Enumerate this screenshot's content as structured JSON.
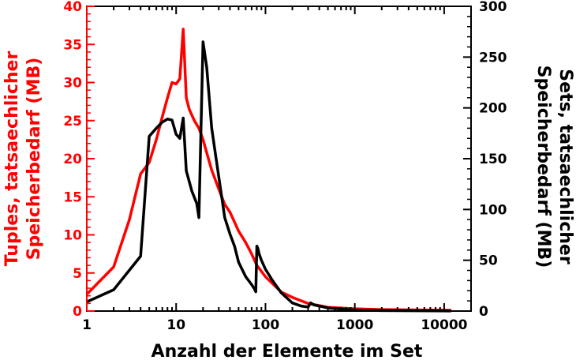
{
  "chart_data": {
    "type": "line",
    "title": "",
    "xlabel": "Anzahl der Elemente im Set",
    "x_scale": "log",
    "xlim": [
      1,
      20000
    ],
    "x_ticks": [
      {
        "value": 1,
        "label": "1"
      },
      {
        "value": 10,
        "label": "10"
      },
      {
        "value": 100,
        "label": "100"
      },
      {
        "value": 1000,
        "label": "1000"
      },
      {
        "value": 10000,
        "label": "10000"
      }
    ],
    "y_left": {
      "label_line1": "Tuples, tatsaechlicher",
      "label_line2": "Speicherbedarf (MB)",
      "ylim": [
        0,
        40
      ],
      "ticks": [
        "0",
        "5",
        "10",
        "15",
        "20",
        "25",
        "30",
        "35",
        "40"
      ],
      "color": "#ff0000"
    },
    "y_right": {
      "label_line1": "Sets, tatsaechlicher",
      "label_line2": "Speicherbedarf (MB)",
      "ylim": [
        0,
        300
      ],
      "ticks": [
        "0",
        "50",
        "100",
        "150",
        "200",
        "250",
        "300"
      ],
      "color": "#000000"
    },
    "series": [
      {
        "axis": "left",
        "color": "#ff0000",
        "points": [
          [
            1,
            2.2
          ],
          [
            2,
            5.8
          ],
          [
            3,
            12
          ],
          [
            4,
            18
          ],
          [
            5,
            19.5
          ],
          [
            6,
            22.5
          ],
          [
            7,
            25.5
          ],
          [
            8,
            28
          ],
          [
            9,
            30
          ],
          [
            10,
            29.8
          ],
          [
            11,
            30.5
          ],
          [
            12,
            37
          ],
          [
            13,
            28
          ],
          [
            14,
            26.5
          ],
          [
            16,
            25
          ],
          [
            18,
            24
          ],
          [
            20,
            22.5
          ],
          [
            25,
            18.5
          ],
          [
            30,
            16
          ],
          [
            35,
            14
          ],
          [
            40,
            13
          ],
          [
            50,
            10.5
          ],
          [
            60,
            9
          ],
          [
            70,
            7.5
          ],
          [
            80,
            6
          ],
          [
            100,
            4.5
          ],
          [
            150,
            2.5
          ],
          [
            200,
            1.8
          ],
          [
            300,
            1
          ],
          [
            500,
            0.5
          ],
          [
            1000,
            0.3
          ],
          [
            2000,
            0.2
          ],
          [
            5000,
            0.15
          ],
          [
            12000,
            0.1
          ]
        ]
      },
      {
        "axis": "right",
        "color": "#000000",
        "points": [
          [
            1,
            9
          ],
          [
            2,
            21
          ],
          [
            4,
            54
          ],
          [
            5,
            172
          ],
          [
            6,
            180
          ],
          [
            7,
            186
          ],
          [
            8,
            189
          ],
          [
            9,
            188
          ],
          [
            10,
            174
          ],
          [
            11,
            170
          ],
          [
            12,
            190
          ],
          [
            13,
            138
          ],
          [
            15,
            118
          ],
          [
            17,
            106
          ],
          [
            18,
            92
          ],
          [
            20,
            265
          ],
          [
            22,
            240
          ],
          [
            25,
            180
          ],
          [
            28,
            150
          ],
          [
            30,
            132
          ],
          [
            35,
            92
          ],
          [
            40,
            76
          ],
          [
            45,
            64
          ],
          [
            50,
            48
          ],
          [
            60,
            34
          ],
          [
            70,
            26
          ],
          [
            75,
            22
          ],
          [
            78,
            19
          ],
          [
            80,
            64
          ],
          [
            82,
            62
          ],
          [
            85,
            56
          ],
          [
            90,
            50
          ],
          [
            100,
            41
          ],
          [
            120,
            30
          ],
          [
            150,
            18
          ],
          [
            200,
            8
          ],
          [
            250,
            5
          ],
          [
            300,
            4
          ],
          [
            320,
            8
          ],
          [
            350,
            6
          ],
          [
            400,
            5
          ],
          [
            500,
            3
          ],
          [
            700,
            2
          ],
          [
            1000,
            1
          ],
          [
            2000,
            0.5
          ],
          [
            5000,
            0.3
          ],
          [
            12000,
            0.1
          ]
        ]
      }
    ]
  }
}
